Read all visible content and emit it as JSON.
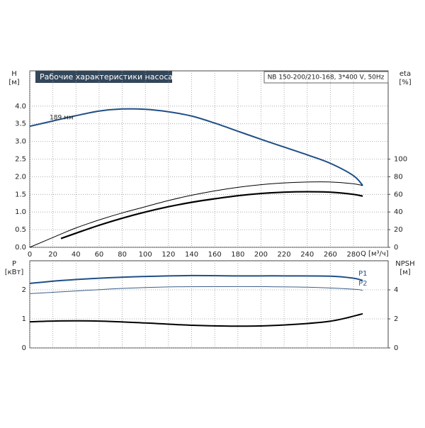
{
  "chart_data": [
    {
      "type": "line",
      "title": "Рабочие характеристики насоса",
      "subtitle": "NB 150-200/210-168, 3*400 V, 50Hz",
      "ylabel": "H",
      "ylabel_unit": "[м]",
      "y2label": "eta",
      "y2label_unit": "[%]",
      "xlabel": "Q [м³/ч]",
      "xlim": [
        0,
        310
      ],
      "xticks": [
        0,
        20,
        40,
        60,
        80,
        100,
        120,
        140,
        160,
        180,
        200,
        220,
        240,
        260,
        280
      ],
      "ylim": [
        0,
        5
      ],
      "yticks": [
        {
          "value": 0,
          "label": "0.0"
        },
        0.5,
        {
          "value": 1,
          "label": "1.0"
        },
        1.5,
        {
          "value": 2,
          "label": "2.0"
        },
        2.5,
        {
          "value": 3,
          "label": "3.0"
        },
        3.5,
        {
          "value": 4,
          "label": "4.0"
        }
      ],
      "y2lim": [
        0,
        200
      ],
      "y2ticks": [
        0,
        20,
        40,
        60,
        80,
        100
      ],
      "grid": true,
      "series": [
        {
          "name": "189 мм",
          "color": "#1f4f86",
          "line_width": 2,
          "x": [
            0,
            20,
            40,
            60,
            80,
            100,
            120,
            140,
            160,
            180,
            200,
            220,
            240,
            260,
            280,
            288
          ],
          "values": [
            3.43,
            3.58,
            3.73,
            3.86,
            3.92,
            3.91,
            3.84,
            3.72,
            3.52,
            3.29,
            3.06,
            2.84,
            2.62,
            2.38,
            2.03,
            1.75
          ]
        },
        {
          "color": "#000000",
          "line_width": 1,
          "axis": "y2",
          "x": [
            0,
            27,
            40,
            60,
            80,
            100,
            120,
            140,
            160,
            180,
            200,
            220,
            240,
            260,
            280,
            288
          ],
          "values": [
            0,
            15,
            22,
            31,
            39,
            46,
            53,
            59,
            64,
            68,
            71,
            73,
            74,
            74,
            72,
            70
          ]
        },
        {
          "color": "#000000",
          "line_width": 2.2,
          "axis": "y2",
          "x": [
            27,
            40,
            60,
            80,
            100,
            120,
            140,
            160,
            180,
            200,
            220,
            240,
            260,
            280,
            288
          ],
          "values": [
            10,
            16,
            25,
            33,
            40,
            46,
            51,
            55,
            58.5,
            61,
            62.5,
            63,
            62.5,
            60,
            58
          ]
        }
      ]
    },
    {
      "type": "line",
      "ylabel": "P",
      "ylabel_unit": "[кВт]",
      "y2label": "NPSH",
      "y2label_unit": "[м]",
      "ylim": [
        0,
        3
      ],
      "yticks": [
        0,
        1,
        2
      ],
      "y2lim": [
        0,
        6
      ],
      "y2ticks": [
        0,
        2,
        4
      ],
      "grid": true,
      "series": [
        {
          "name": "P1",
          "color": "#1f4f86",
          "line_width": 2,
          "x": [
            0,
            27,
            60,
            100,
            140,
            180,
            220,
            260,
            280,
            288
          ],
          "values": [
            2.22,
            2.32,
            2.4,
            2.46,
            2.49,
            2.48,
            2.48,
            2.47,
            2.4,
            2.32
          ]
        },
        {
          "name": "P2",
          "color": "#3a5f8a",
          "line_width": 1,
          "x": [
            0,
            40,
            80,
            120,
            160,
            200,
            240,
            280,
            288
          ],
          "values": [
            1.87,
            1.96,
            2.05,
            2.1,
            2.11,
            2.11,
            2.09,
            2.02,
            1.98
          ]
        },
        {
          "color": "#000000",
          "line_width": 2,
          "axis": "y2",
          "x": [
            0,
            27,
            60,
            100,
            140,
            180,
            220,
            260,
            288
          ],
          "values": [
            1.8,
            1.86,
            1.85,
            1.72,
            1.56,
            1.5,
            1.58,
            1.84,
            2.35
          ]
        }
      ]
    }
  ]
}
